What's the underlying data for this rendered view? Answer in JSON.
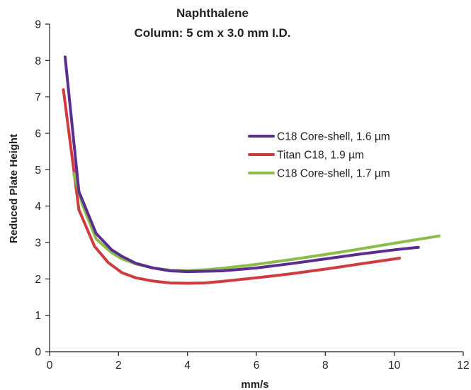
{
  "chart_data": {
    "type": "line",
    "title": "Naphthalene",
    "subtitle": "Column: 5 cm x 3.0 mm I.D.",
    "xlabel": "mm/s",
    "ylabel": "Reduced Plate Height",
    "xlim": [
      0,
      12
    ],
    "ylim": [
      0,
      9
    ],
    "xticks": [
      "0",
      "2",
      "4",
      "6",
      "8",
      "10",
      "12"
    ],
    "yticks": [
      "0",
      "1",
      "2",
      "3",
      "4",
      "5",
      "6",
      "7",
      "8",
      "9"
    ],
    "grid": false,
    "legend_position": "right",
    "series": [
      {
        "name": "C18 Core-shell, 1.6 µm",
        "color": "#5b2d90",
        "x": [
          0.45,
          0.85,
          1.35,
          1.8,
          2.1,
          2.5,
          3.0,
          3.5,
          4.0,
          5.0,
          6.0,
          7.0,
          8.0,
          9.0,
          10.0,
          10.7
        ],
        "y": [
          8.1,
          4.4,
          3.25,
          2.8,
          2.62,
          2.43,
          2.3,
          2.22,
          2.2,
          2.22,
          2.3,
          2.42,
          2.55,
          2.68,
          2.8,
          2.87
        ]
      },
      {
        "name": "Titan C18, 1.9 µm",
        "color": "#cf3b3f",
        "x": [
          0.4,
          0.85,
          1.3,
          1.7,
          2.1,
          2.5,
          3.0,
          3.5,
          4.0,
          4.5,
          5.0,
          6.0,
          7.0,
          8.0,
          9.0,
          10.15
        ],
        "y": [
          7.2,
          3.9,
          2.9,
          2.45,
          2.17,
          2.03,
          1.94,
          1.89,
          1.88,
          1.89,
          1.93,
          2.03,
          2.14,
          2.27,
          2.41,
          2.57
        ]
      },
      {
        "name": "C18 Core-shell, 1.7 µm",
        "color": "#8cbd4a",
        "x": [
          0.7,
          0.95,
          1.35,
          1.8,
          2.1,
          2.5,
          3.0,
          3.5,
          4.0,
          4.5,
          5.0,
          6.0,
          7.0,
          8.0,
          9.0,
          10.0,
          11.3
        ],
        "y": [
          4.9,
          4.05,
          3.1,
          2.72,
          2.55,
          2.41,
          2.3,
          2.24,
          2.23,
          2.25,
          2.29,
          2.4,
          2.53,
          2.67,
          2.82,
          2.98,
          3.18
        ]
      }
    ]
  }
}
